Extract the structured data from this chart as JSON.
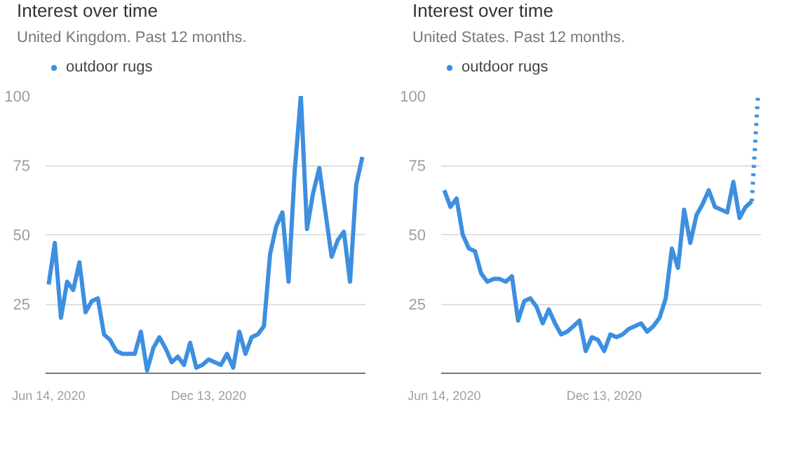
{
  "chart_data": [
    {
      "type": "line",
      "title": "Interest over time",
      "subtitle": "United Kingdom. Past 12 months.",
      "categories": [
        "Jun 14, 2020",
        null,
        null,
        null,
        null,
        null,
        null,
        null,
        null,
        null,
        null,
        null,
        null,
        null,
        null,
        null,
        null,
        null,
        null,
        null,
        null,
        null,
        null,
        null,
        null,
        null,
        "Dec 13, 2020",
        null,
        null,
        null,
        null,
        null,
        null,
        null,
        null,
        null,
        null,
        null,
        null,
        null,
        null,
        null,
        null,
        null,
        null,
        null,
        null,
        null,
        null,
        null,
        null,
        null
      ],
      "series": [
        {
          "name": "outdoor rugs",
          "color": "#3d8fe0",
          "values": [
            32,
            47,
            20,
            33,
            30,
            40,
            22,
            26,
            27,
            14,
            12,
            8,
            7,
            7,
            7,
            15,
            1,
            9,
            13,
            9,
            4,
            6,
            3,
            11,
            2,
            3,
            5,
            4,
            3,
            7,
            2,
            15,
            7,
            13,
            14,
            17,
            43,
            53,
            58,
            33,
            73,
            100,
            52,
            65,
            74,
            58,
            42,
            48,
            51,
            33,
            68,
            78
          ]
        }
      ],
      "ylim": [
        0,
        100
      ],
      "yticks": [
        25,
        50,
        75,
        100
      ],
      "grid": "y",
      "legend": "top left",
      "line_style": "solid"
    },
    {
      "type": "line",
      "title": "Interest over time",
      "subtitle": "United States. Past 12 months.",
      "categories": [
        "Jun 14, 2020",
        null,
        null,
        null,
        null,
        null,
        null,
        null,
        null,
        null,
        null,
        null,
        null,
        null,
        null,
        null,
        null,
        null,
        null,
        null,
        null,
        null,
        null,
        null,
        null,
        null,
        "Dec 13, 2020",
        null,
        null,
        null,
        null,
        null,
        null,
        null,
        null,
        null,
        null,
        null,
        null,
        null,
        null,
        null,
        null,
        null,
        null,
        null,
        null,
        null,
        null,
        null,
        null,
        null
      ],
      "series": [
        {
          "name": "outdoor rugs",
          "color": "#3d8fe0",
          "values": [
            66,
            60,
            63,
            50,
            45,
            44,
            36,
            33,
            34,
            34,
            33,
            35,
            19,
            26,
            27,
            24,
            18,
            23,
            18,
            14,
            15,
            17,
            19,
            8,
            13,
            12,
            8,
            14,
            13,
            14,
            16,
            17,
            18,
            15,
            17,
            20,
            27,
            45,
            38,
            59,
            47,
            57,
            61,
            66,
            60,
            59,
            58,
            69,
            56,
            60,
            62,
            null
          ]
        },
        {
          "color": "#3d8fe0",
          "line_style": "dotted",
          "values": [
            null,
            null,
            null,
            null,
            null,
            null,
            null,
            null,
            null,
            null,
            null,
            null,
            null,
            null,
            null,
            null,
            null,
            null,
            null,
            null,
            null,
            null,
            null,
            null,
            null,
            null,
            null,
            null,
            null,
            null,
            null,
            null,
            null,
            null,
            null,
            null,
            null,
            null,
            null,
            null,
            null,
            null,
            null,
            null,
            null,
            null,
            null,
            null,
            null,
            null,
            62,
            100
          ]
        }
      ],
      "ylim": [
        0,
        100
      ],
      "yticks": [
        25,
        50,
        75,
        100
      ],
      "grid": "y",
      "legend": "top left",
      "line_style": "solid"
    }
  ]
}
